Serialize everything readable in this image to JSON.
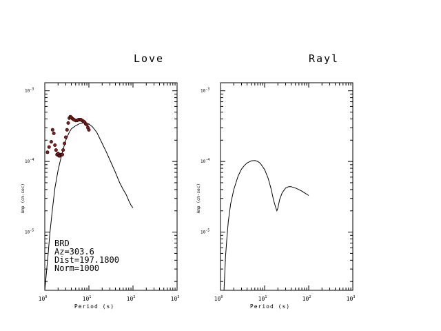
{
  "chart_data": [
    {
      "type": "line",
      "title": "Love",
      "xlabel": "Period (s)",
      "ylabel": "Amp (cm-sec)",
      "x_scale": "log",
      "y_scale": "log",
      "xlim": [
        1,
        1000
      ],
      "ylim": [
        1.5e-06,
        0.0013
      ],
      "x_tick_labels": [
        {
          "base": "10",
          "exp": "0"
        },
        {
          "base": "10",
          "exp": "1"
        },
        {
          "base": "10",
          "exp": "2"
        },
        {
          "base": "10",
          "exp": "3"
        }
      ],
      "y_tick_labels": [
        {
          "base": "10",
          "exp": "-3",
          "value": 0.001
        },
        {
          "base": "10",
          "exp": "-4",
          "value": 0.0001
        },
        {
          "base": "10",
          "exp": "-5",
          "value": 1e-05
        }
      ],
      "annotations": [
        "BRD",
        "Az=303.6",
        "Dist=197.1800",
        "Norm=1000"
      ],
      "series": [
        {
          "kind": "line",
          "x": [
            1.0,
            1.1,
            1.2,
            1.3,
            1.5,
            1.7,
            2.0,
            2.3,
            2.7,
            3.0,
            3.5,
            4.0,
            5.0,
            6.0,
            7.0,
            8.0,
            10.0,
            12.0,
            15.0,
            20.0,
            25.0,
            30.0,
            40.0,
            50.0,
            60.0,
            70.0,
            80.0,
            90.0,
            100.0
          ],
          "y": [
            1.5e-06,
            2.8e-06,
            5.2e-06,
            9.5e-06,
            2.2e-05,
            4.2e-05,
            7.5e-05,
            0.00011,
            0.00016,
            0.0002,
            0.00025,
            0.00029,
            0.00032,
            0.00034,
            0.00035,
            0.00035,
            0.00034,
            0.00031,
            0.00026,
            0.00018,
            0.000135,
            0.000105,
            7e-05,
            5e-05,
            4e-05,
            3.4e-05,
            2.8e-05,
            2.4e-05,
            2.2e-05
          ]
        },
        {
          "kind": "scatter",
          "color": "#8b1a1a",
          "x": [
            1.15,
            1.25,
            1.4,
            1.5,
            1.6,
            1.7,
            1.8,
            1.9,
            2.0,
            2.1,
            2.2,
            2.3,
            2.4,
            2.5,
            2.6,
            2.8,
            3.0,
            3.2,
            3.4,
            3.6,
            3.8,
            4.0,
            4.3,
            4.6,
            5.0,
            5.4,
            5.8,
            6.2,
            6.6,
            7.0,
            7.5,
            8.0,
            8.5,
            9.0,
            9.5,
            10.0
          ],
          "y": [
            0.000135,
            0.00016,
            0.00019,
            0.00028,
            0.00025,
            0.00017,
            0.000145,
            0.000125,
            0.00013,
            0.00012,
            0.00012,
            0.000125,
            0.000125,
            0.000125,
            0.000145,
            0.00018,
            0.00022,
            0.00028,
            0.00035,
            0.00041,
            0.00043,
            0.00042,
            0.0004,
            0.00039,
            0.00038,
            0.00038,
            0.00039,
            0.00039,
            0.00039,
            0.00038,
            0.00037,
            0.00036,
            0.00034,
            0.00033,
            0.0003,
            0.00028
          ]
        }
      ]
    },
    {
      "type": "line",
      "title": "Rayl",
      "xlabel": "Period (s)",
      "ylabel": "Amp (cm-sec)",
      "x_scale": "log",
      "y_scale": "log",
      "xlim": [
        1,
        1000
      ],
      "ylim": [
        1.5e-06,
        0.0013
      ],
      "x_tick_labels": [
        {
          "base": "10",
          "exp": "0"
        },
        {
          "base": "10",
          "exp": "1"
        },
        {
          "base": "10",
          "exp": "2"
        },
        {
          "base": "10",
          "exp": "3"
        }
      ],
      "y_tick_labels": [
        {
          "base": "10",
          "exp": "-3",
          "value": 0.001
        },
        {
          "base": "10",
          "exp": "-4",
          "value": 0.0001
        },
        {
          "base": "10",
          "exp": "-5",
          "value": 1e-05
        }
      ],
      "series": [
        {
          "kind": "line",
          "x": [
            1.2,
            1.3,
            1.4,
            1.5,
            1.7,
            2.0,
            2.5,
            3.0,
            3.5,
            4.0,
            5.0,
            6.0,
            7.0,
            8.0,
            10.0,
            12.0,
            14.0,
            16.0,
            18.0,
            19.0,
            20.0,
            22.0,
            25.0,
            30.0,
            35.0,
            40.0,
            50.0,
            60.0,
            70.0,
            80.0,
            100.0
          ],
          "y": [
            1.5e-06,
            4.5e-06,
            8.5e-06,
            1.4e-05,
            2.5e-05,
            4e-05,
            6.2e-05,
            7.8e-05,
            8.8e-05,
            9.5e-05,
            0.000102,
            0.000103,
            0.0001,
            9.4e-05,
            7.7e-05,
            5.8e-05,
            4.1e-05,
            2.8e-05,
            2.2e-05,
            2e-05,
            2.2e-05,
            2.9e-05,
            3.6e-05,
            4.2e-05,
            4.4e-05,
            4.4e-05,
            4.2e-05,
            4e-05,
            3.8e-05,
            3.6e-05,
            3.3e-05
          ]
        }
      ]
    }
  ]
}
